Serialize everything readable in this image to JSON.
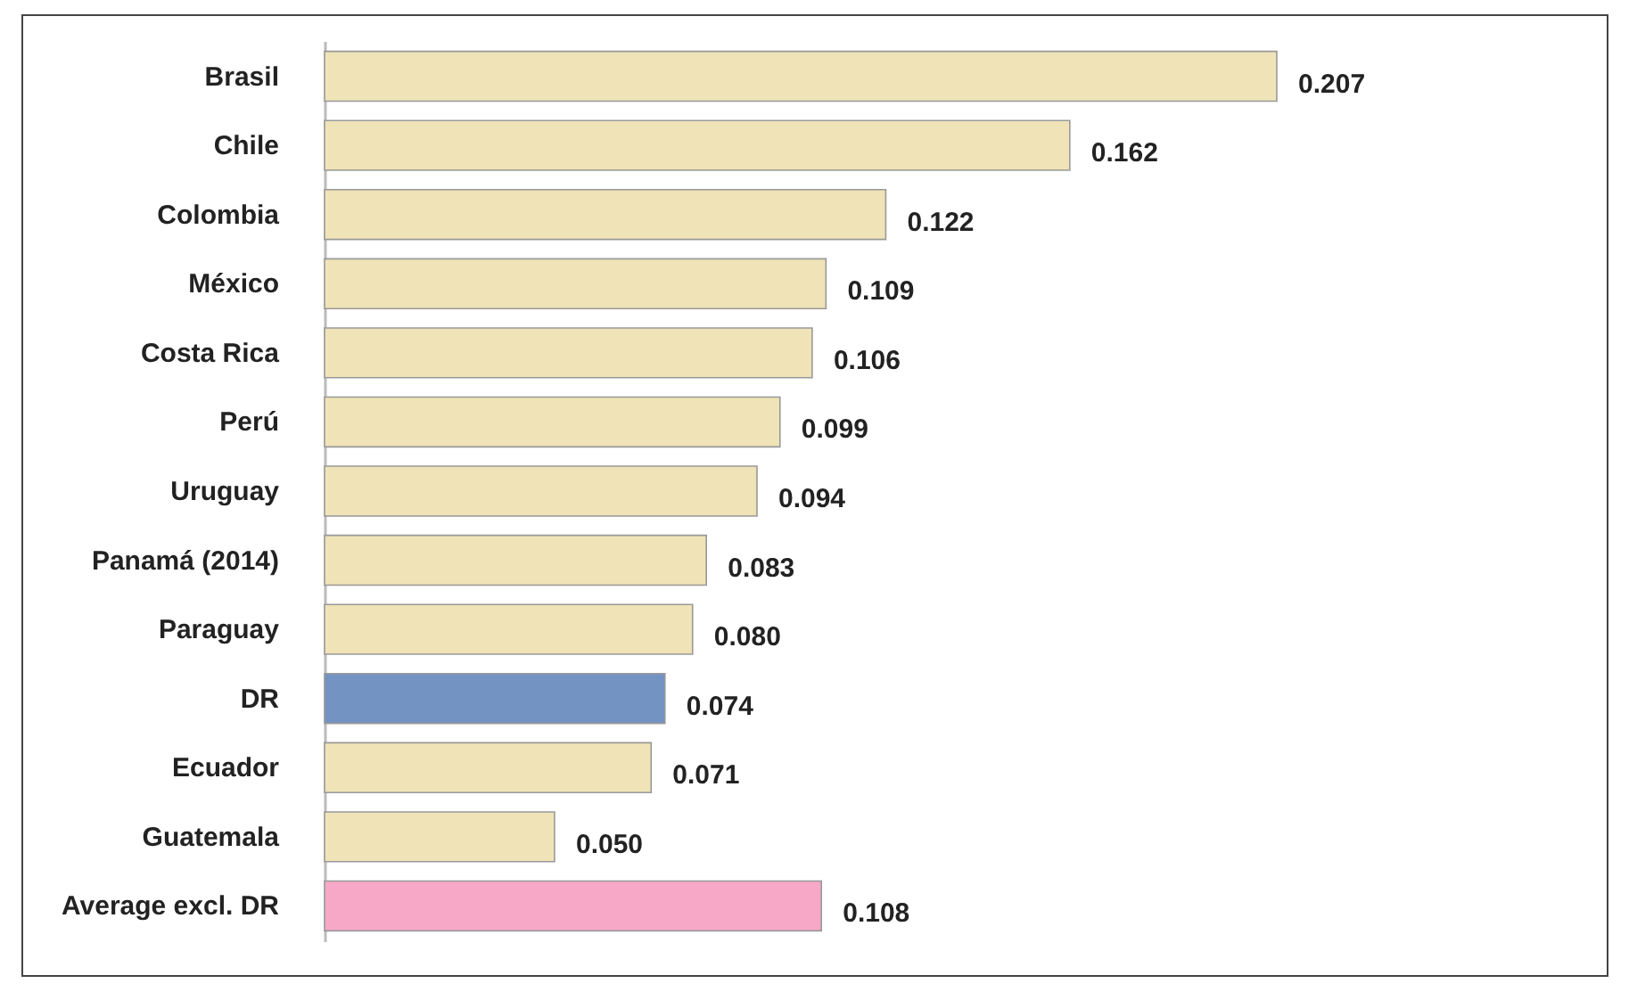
{
  "chart_data": {
    "type": "bar",
    "orientation": "horizontal",
    "value_labels": [
      "0.207",
      "0.162",
      "0.122",
      "0.109",
      "0.106",
      "0.099",
      "0.094",
      "0.083",
      "0.080",
      "0.074",
      "0.071",
      "0.050",
      "0.108"
    ],
    "categories": [
      "Brasil",
      "Chile",
      "Colombia",
      "México",
      "Costa Rica",
      "Perú",
      "Uruguay",
      "Panamá (2014)",
      "Paraguay",
      "DR",
      "Ecuador",
      "Guatemala",
      "Average excl. DR"
    ],
    "values": [
      0.207,
      0.162,
      0.122,
      0.109,
      0.106,
      0.099,
      0.094,
      0.083,
      0.08,
      0.074,
      0.071,
      0.05,
      0.108
    ],
    "colors": [
      "#efe3b7",
      "#efe3b7",
      "#efe3b7",
      "#efe3b7",
      "#efe3b7",
      "#efe3b7",
      "#efe3b7",
      "#efe3b7",
      "#efe3b7",
      "#7393c2",
      "#efe3b7",
      "#efe3b7",
      "#f7a8c6"
    ]
  }
}
